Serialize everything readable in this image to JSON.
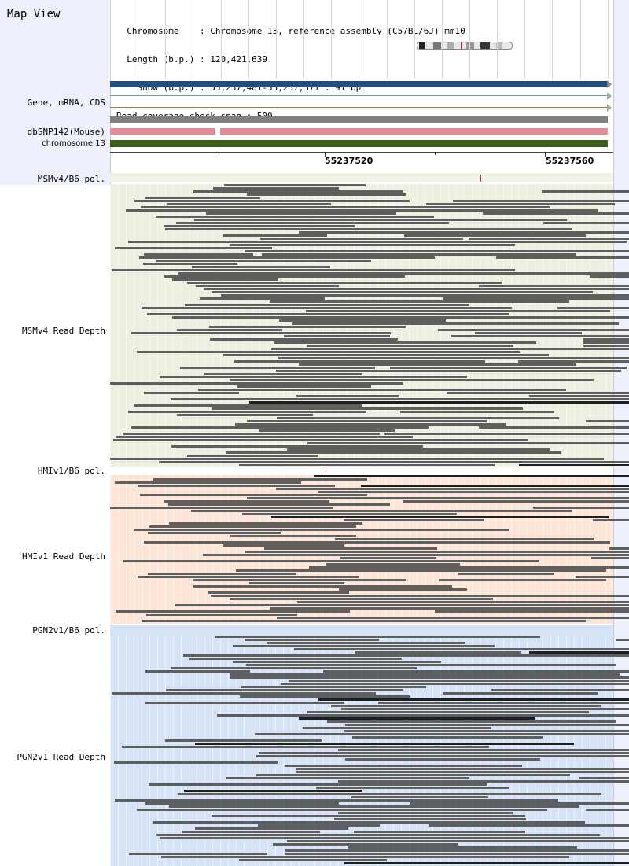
{
  "header": {
    "title": "Map View",
    "info_lines": [
      "  Chromosome    : Chromosome 13, reference assembly (C57BL/6J) mm10",
      "  Length (b.p.) : 120,421,639",
      "    Show (b.p.) : 55,237,481-55,237,571 : 91 bp",
      "Read coverage check span : 500"
    ]
  },
  "tracks": {
    "gene_label": "Gene, mRNA, CDS",
    "dbsnp_label": "dbSNP142(Mouse)",
    "chromosome_label": "chromosome 13"
  },
  "scale": {
    "ticks": [
      "55237520",
      "55237560"
    ]
  },
  "panels": {
    "msmv4_pol": "MSMv4/B6 pol.",
    "msmv4_depth": "MSMv4 Read Depth",
    "hmiv1_pol": "HMIv1/B6 pol.",
    "hmiv1_depth": "HMIv1 Read Depth",
    "pgn2v1_pol": "PGN2v1/B6 pol.",
    "pgn2v1_depth": "PGN2v1 Read Depth"
  },
  "colors": {
    "gene_bar": "#1f4e86",
    "dbsnp_bar": "#e88a98",
    "chromosome_bar": "#3f5f1f",
    "msmv4_bg": "#edf0e1",
    "hmiv1_bg": "#fde6d8",
    "pgn2v1_bg": "#d6e2f5",
    "read": "#5f5f5f",
    "snp_marker": "#c0364a"
  }
}
